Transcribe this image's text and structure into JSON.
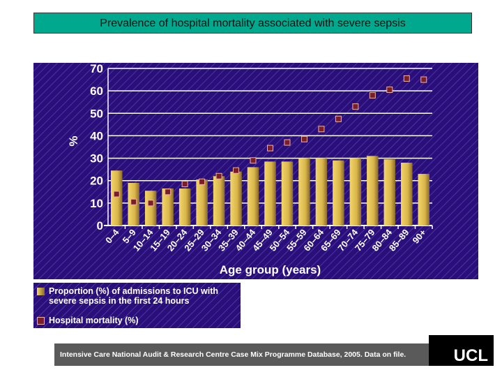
{
  "title": "Prevalence of hospital mortality associated with severe sepsis",
  "chart_data": {
    "type": "bar",
    "xlabel": "Age group (years)",
    "ylabel": "%",
    "ylim": [
      0,
      70
    ],
    "yticks": [
      0,
      10,
      20,
      30,
      40,
      50,
      60,
      70
    ],
    "grid": true,
    "categories": [
      "0–4",
      "5–9",
      "10–14",
      "15–19",
      "20–24",
      "25–29",
      "30–34",
      "35–39",
      "40–44",
      "45–49",
      "50–54",
      "55–59",
      "60–64",
      "65–69",
      "70–74",
      "75–79",
      "80–84",
      "85–89",
      "90+"
    ],
    "series": [
      {
        "name": "Proportion (%) of admissions to ICU with severe sepsis in the first 24 hours",
        "type": "bar",
        "color": "#e8c65a",
        "values": [
          24.5,
          19,
          15.5,
          16.5,
          16.5,
          20.5,
          22,
          24,
          26,
          28.5,
          28.5,
          30,
          30,
          29,
          30,
          31,
          29.5,
          28,
          23
        ]
      },
      {
        "name": "Hospital mortality (%)",
        "type": "scatter",
        "color": "#7a1e2a",
        "values": [
          14,
          10.5,
          10,
          15,
          18.5,
          19.5,
          22,
          24.5,
          29,
          34.5,
          37,
          38.5,
          43,
          47.5,
          53,
          58,
          60.5,
          65.5,
          65
        ]
      }
    ],
    "legend": "below"
  },
  "footer": "Intensive Care National Audit & Research Centre Case Mix Programme Database, 2005. Data on file.",
  "logo": "UCL"
}
